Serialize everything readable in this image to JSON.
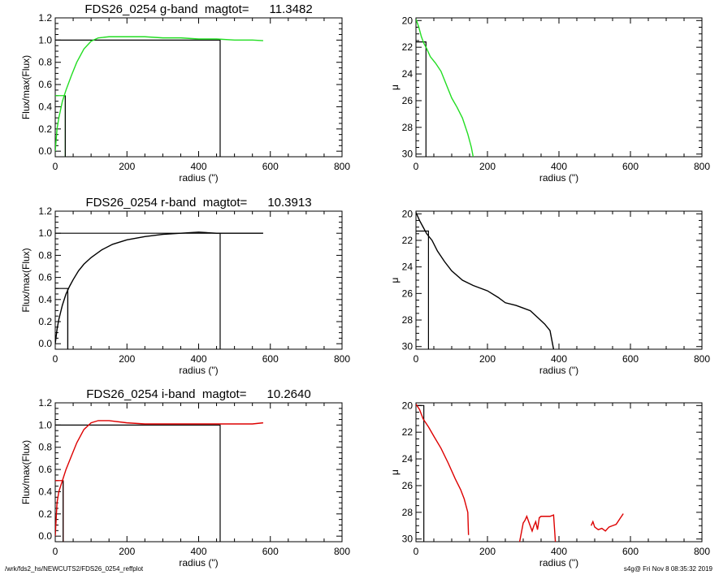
{
  "footer": {
    "path": "/wrk/fds2_hs/NEWCUTS2/FDS26_0254_reffplot",
    "stamp": "s4g@  Fri Nov  8 08:35:32 2019"
  },
  "chart_data": [
    {
      "type": "line",
      "title": "FDS26_0254 g-band  magtot=      11.3482",
      "xlabel": "radius (\")",
      "ylabel": "Flux/max(Flux)",
      "xlim": [
        0,
        800
      ],
      "ylim": [
        -0.05,
        1.2
      ],
      "xticks": [
        0,
        200,
        400,
        600,
        800
      ],
      "yticks": [
        0.0,
        0.2,
        0.4,
        0.6,
        0.8,
        1.0,
        1.2
      ],
      "color": "#22dd22",
      "series": [
        {
          "x": [
            0,
            5,
            10,
            20,
            30,
            45,
            60,
            80,
            100,
            120,
            150,
            200,
            250,
            300,
            350,
            400,
            450,
            500,
            550,
            580
          ],
          "y": [
            0,
            0.2,
            0.3,
            0.45,
            0.55,
            0.68,
            0.8,
            0.92,
            0.99,
            1.02,
            1.03,
            1.03,
            1.03,
            1.02,
            1.02,
            1.01,
            1.01,
            1.0,
            1.0,
            0.995
          ]
        }
      ],
      "reference_lines": {
        "half_radius": 28,
        "half_level": 0.5,
        "total_radius": 460,
        "total_level": 1.0
      }
    },
    {
      "type": "line",
      "title": "",
      "xlabel": "radius (\")",
      "ylabel": "μ",
      "xlim": [
        0,
        800
      ],
      "ylim": [
        30.2,
        19.8
      ],
      "xticks": [
        0,
        200,
        400,
        600,
        800
      ],
      "yticks": [
        20,
        22,
        24,
        26,
        28,
        30
      ],
      "color": "#22dd22",
      "series": [
        {
          "x": [
            0,
            8,
            15,
            22,
            30,
            40,
            55,
            70,
            85,
            100,
            115,
            130,
            145,
            155,
            160
          ],
          "y": [
            19.9,
            20.5,
            21.2,
            21.7,
            22.1,
            22.7,
            23.2,
            23.8,
            24.8,
            25.8,
            26.5,
            27.3,
            28.5,
            29.5,
            30.2
          ]
        }
      ],
      "reference_lines": {
        "radius": 28,
        "level": 21.6
      }
    },
    {
      "type": "line",
      "title": "FDS26_0254 r-band  magtot=      10.3913",
      "xlabel": "radius (\")",
      "ylabel": "Flux/max(Flux)",
      "xlim": [
        0,
        800
      ],
      "ylim": [
        -0.05,
        1.2
      ],
      "xticks": [
        0,
        200,
        400,
        600,
        800
      ],
      "yticks": [
        0.0,
        0.2,
        0.4,
        0.6,
        0.8,
        1.0,
        1.2
      ],
      "color": "#000000",
      "series": [
        {
          "x": [
            0,
            5,
            10,
            20,
            30,
            40,
            50,
            65,
            80,
            100,
            130,
            160,
            200,
            250,
            300,
            350,
            400,
            450,
            500,
            580
          ],
          "y": [
            0,
            0.13,
            0.22,
            0.35,
            0.45,
            0.52,
            0.58,
            0.66,
            0.72,
            0.78,
            0.85,
            0.9,
            0.94,
            0.97,
            0.99,
            1.0,
            1.01,
            1.0,
            1.0,
            1.0
          ]
        }
      ],
      "reference_lines": {
        "half_radius": 35,
        "half_level": 0.5,
        "total_radius": 460,
        "total_level": 1.0
      }
    },
    {
      "type": "line",
      "title": "",
      "xlabel": "radius (\")",
      "ylabel": "μ",
      "xlim": [
        0,
        800
      ],
      "ylim": [
        30.2,
        19.8
      ],
      "xticks": [
        0,
        200,
        400,
        600,
        800
      ],
      "yticks": [
        20,
        22,
        24,
        26,
        28,
        30
      ],
      "color": "#000000",
      "series": [
        {
          "x": [
            0,
            10,
            20,
            30,
            45,
            60,
            80,
            100,
            130,
            160,
            200,
            230,
            250,
            280,
            300,
            320,
            340,
            360,
            375,
            385
          ],
          "y": [
            19.9,
            20.5,
            21.0,
            21.5,
            22.0,
            22.8,
            23.6,
            24.3,
            25.0,
            25.4,
            25.8,
            26.3,
            26.7,
            26.9,
            27.1,
            27.3,
            27.8,
            28.3,
            28.8,
            30.2
          ]
        }
      ],
      "reference_lines": {
        "radius": 35,
        "level": 21.3
      }
    },
    {
      "type": "line",
      "title": "FDS26_0254 i-band  magtot=      10.2640",
      "xlabel": "radius (\")",
      "ylabel": "Flux/max(Flux)",
      "xlim": [
        0,
        800
      ],
      "ylim": [
        -0.05,
        1.2
      ],
      "xticks": [
        0,
        200,
        400,
        600,
        800
      ],
      "yticks": [
        0.0,
        0.2,
        0.4,
        0.6,
        0.8,
        1.0,
        1.2
      ],
      "color": "#dd0000",
      "series": [
        {
          "x": [
            0,
            5,
            10,
            20,
            30,
            45,
            60,
            80,
            100,
            120,
            150,
            200,
            250,
            300,
            350,
            400,
            450,
            500,
            550,
            580
          ],
          "y": [
            0,
            0.3,
            0.4,
            0.5,
            0.6,
            0.72,
            0.84,
            0.96,
            1.02,
            1.04,
            1.04,
            1.02,
            1.01,
            1.01,
            1.01,
            1.01,
            1.01,
            1.01,
            1.01,
            1.02
          ]
        }
      ],
      "reference_lines": {
        "half_radius": 22,
        "half_level": 0.5,
        "total_radius": 460,
        "total_level": 1.0
      }
    },
    {
      "type": "line",
      "title": "",
      "xlabel": "radius (\")",
      "ylabel": "μ",
      "xlim": [
        0,
        800
      ],
      "ylim": [
        30.2,
        19.8
      ],
      "xticks": [
        0,
        200,
        400,
        600,
        800
      ],
      "yticks": [
        20,
        22,
        24,
        26,
        28,
        30
      ],
      "color": "#dd0000",
      "series": [
        {
          "x": [
            0,
            10,
            20,
            35,
            50,
            70,
            90,
            110,
            125,
            135,
            145,
            147
          ],
          "y": [
            19.9,
            20.3,
            21.0,
            21.6,
            22.3,
            23.2,
            24.3,
            25.5,
            26.3,
            27.0,
            28.0,
            29.7
          ]
        },
        {
          "x": [
            290,
            300,
            305,
            310,
            318,
            325,
            330,
            335,
            340,
            345,
            350,
            360,
            375,
            385,
            390
          ],
          "y": [
            30.2,
            28.8,
            28.6,
            28.3,
            28.9,
            29.4,
            29.0,
            28.7,
            29.3,
            28.4,
            28.3,
            28.3,
            28.3,
            28.2,
            30.2
          ]
        },
        {
          "x": [
            490,
            495,
            500,
            510,
            520,
            530,
            540,
            550,
            560,
            570,
            580
          ],
          "y": [
            29.0,
            28.7,
            29.1,
            29.3,
            29.2,
            29.4,
            29.1,
            29.0,
            28.9,
            28.5,
            28.1
          ]
        }
      ],
      "reference_lines": {
        "radius": 22,
        "level": 20.0
      }
    }
  ]
}
